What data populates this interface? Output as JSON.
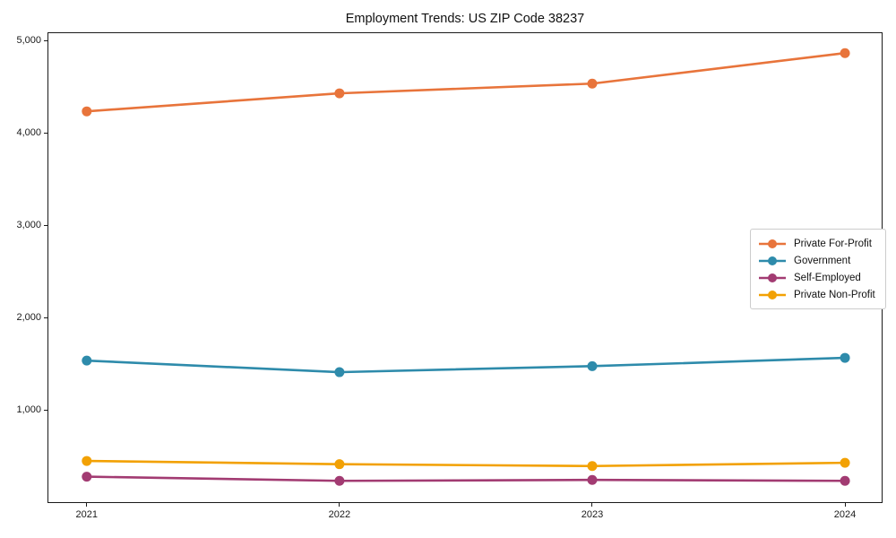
{
  "title": "Employment Trends: US ZIP Code 38237",
  "chart_data": {
    "type": "line",
    "x": [
      2021,
      2022,
      2023,
      2024
    ],
    "xtick_labels": [
      "2021",
      "2022",
      "2023",
      "2024"
    ],
    "yticks": [
      1000,
      2000,
      3000,
      4000,
      5000
    ],
    "ytick_labels": [
      "1,000",
      "2,000",
      "3,000",
      "4,000",
      "5,000"
    ],
    "ylim": [
      0,
      5090
    ],
    "grid": false,
    "marker": "circle",
    "legend_position": "center-right",
    "series": [
      {
        "name": "Private For-Profit",
        "color": "#e8743b",
        "values": [
          4235,
          4430,
          4535,
          4865
        ]
      },
      {
        "name": "Government",
        "color": "#2e8bab",
        "values": [
          1540,
          1415,
          1480,
          1570
        ]
      },
      {
        "name": "Self-Employed",
        "color": "#a23b72",
        "values": [
          285,
          240,
          250,
          240
        ]
      },
      {
        "name": "Private Non-Profit",
        "color": "#f2a104",
        "values": [
          455,
          420,
          400,
          435
        ]
      }
    ]
  }
}
